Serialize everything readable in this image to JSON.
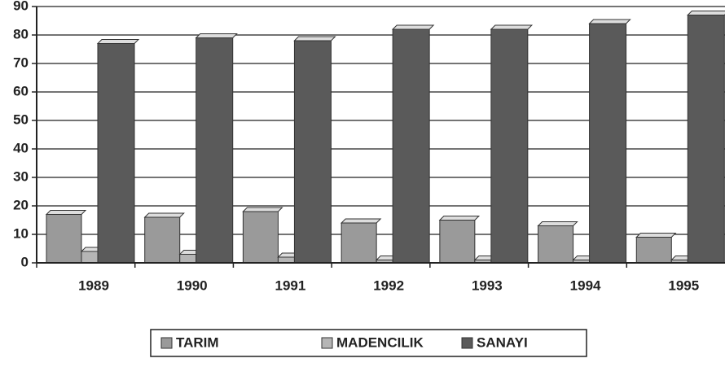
{
  "chart_data": {
    "type": "bar",
    "categories": [
      "1989",
      "1990",
      "1991",
      "1992",
      "1993",
      "1994",
      "1995"
    ],
    "series": [
      {
        "name": "TARIM",
        "color": "#9a9a9a",
        "values": [
          17,
          16,
          18,
          14,
          15,
          13,
          9
        ]
      },
      {
        "name": "MADENCILIK",
        "color": "#b5b5b5",
        "values": [
          4,
          3,
          2,
          1,
          1,
          1,
          1
        ]
      },
      {
        "name": "SANAYI",
        "color": "#5a5a5a",
        "values": [
          77,
          79,
          78,
          82,
          82,
          84,
          87
        ]
      }
    ],
    "ylim": [
      0,
      90
    ],
    "yticks": [
      0,
      10,
      20,
      30,
      40,
      50,
      60,
      70,
      80,
      90
    ],
    "grid": true,
    "legend": "bottom"
  }
}
